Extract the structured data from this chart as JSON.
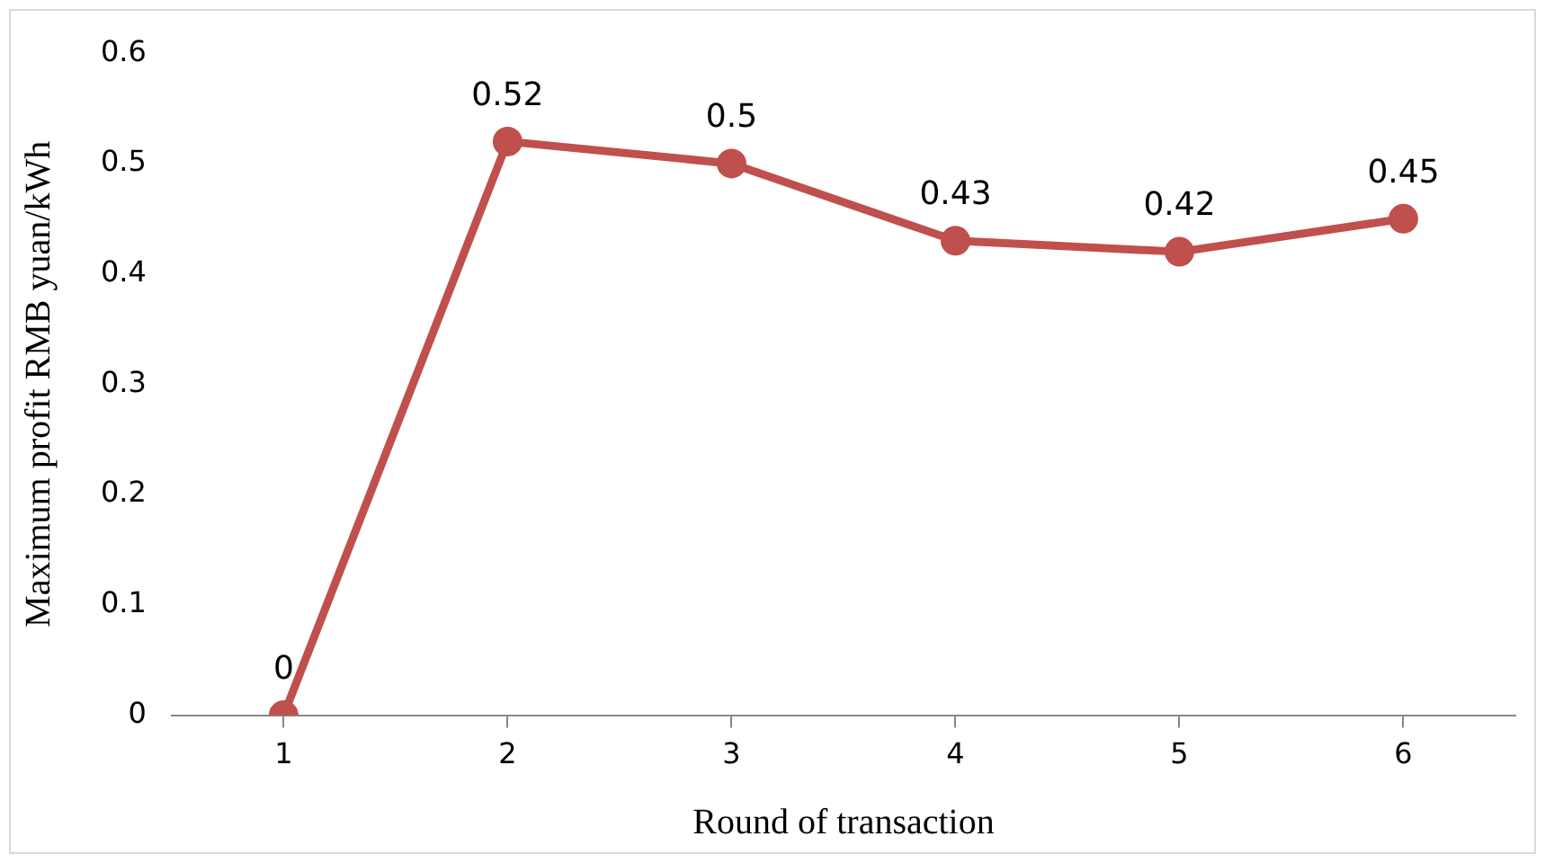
{
  "chart_data": {
    "type": "line",
    "xlabel": "Round of transaction",
    "ylabel": "Maximum profit RMB yuan/kWh",
    "categories": [
      "1",
      "2",
      "3",
      "4",
      "5",
      "6"
    ],
    "series": [
      {
        "color": "#c0504d",
        "values": [
          0,
          0.52,
          0.5,
          0.43,
          0.42,
          0.45
        ]
      }
    ],
    "ylim": [
      0,
      0.6
    ],
    "yticks": [
      0,
      0.1,
      0.2,
      0.3,
      0.4,
      0.5,
      0.6
    ],
    "grid": false,
    "legend": false,
    "marker": "circle",
    "line_style": "solid",
    "data_labels": true
  }
}
